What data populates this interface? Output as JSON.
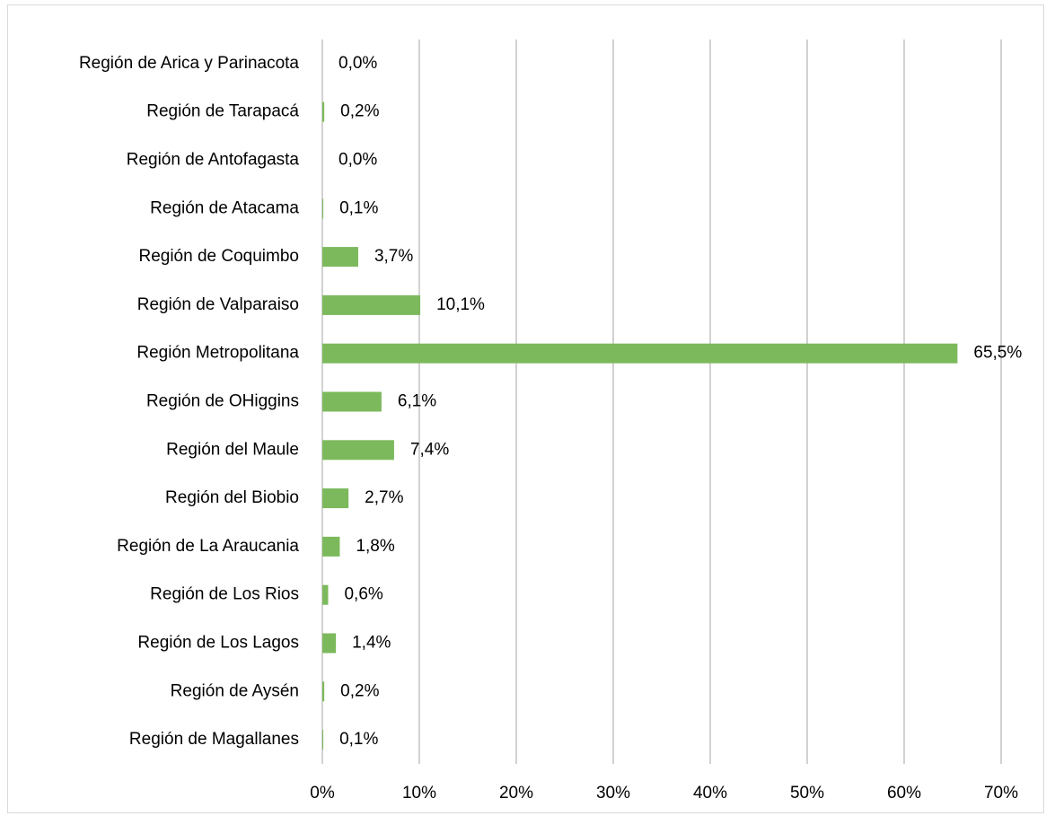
{
  "chart_data": {
    "type": "barh",
    "categories": [
      "Región de Arica y Parinacota",
      "Región de Tarapacá",
      "Región de Antofagasta",
      "Región de Atacama",
      "Región de Coquimbo",
      "Región de Valparaiso",
      "Región Metropolitana",
      "Región de OHiggins",
      "Región del Maule",
      "Región del Biobio",
      "Región de La Araucania",
      "Región de Los Rios",
      "Región de Los Lagos",
      "Región de Aysén",
      "Región de Magallanes"
    ],
    "values": [
      0.0,
      0.2,
      0.0,
      0.1,
      3.7,
      10.1,
      65.5,
      6.1,
      7.4,
      2.7,
      1.8,
      0.6,
      1.4,
      0.2,
      0.1
    ],
    "value_labels": [
      "0,0%",
      "0,2%",
      "0,0%",
      "0,1%",
      "3,7%",
      "10,1%",
      "65,5%",
      "6,1%",
      "7,4%",
      "2,7%",
      "1,8%",
      "0,6%",
      "1,4%",
      "0,2%",
      "0,1%"
    ],
    "color": "#7cb95c",
    "xlim": [
      0,
      70
    ],
    "xticks": [
      {
        "value": 0,
        "label": "0%"
      },
      {
        "value": 10,
        "label": "10%"
      },
      {
        "value": 20,
        "label": "20%"
      },
      {
        "value": 30,
        "label": "30%"
      },
      {
        "value": 40,
        "label": "40%"
      },
      {
        "value": 50,
        "label": "50%"
      },
      {
        "value": 60,
        "label": "60%"
      },
      {
        "value": 70,
        "label": "70%"
      }
    ],
    "grid": true
  }
}
